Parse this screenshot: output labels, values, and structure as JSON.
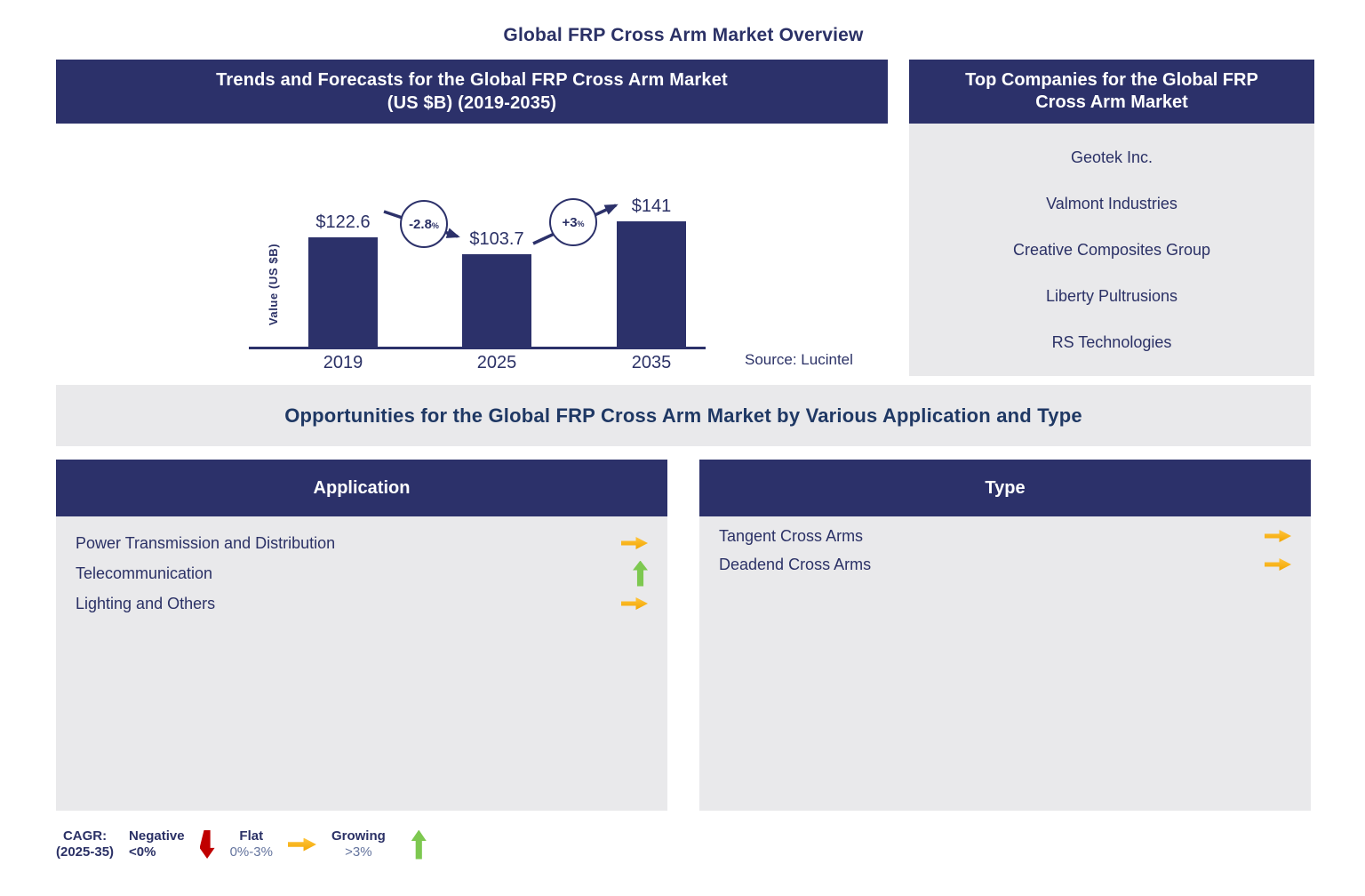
{
  "page": {
    "title": "Global FRP Cross Arm Market Overview"
  },
  "trends_panel": {
    "title_line1": "Trends and Forecasts for the Global FRP Cross Arm Market",
    "title_line2": "(US $B) (2019-2035)",
    "source": "Source: Lucintel"
  },
  "chart_data": {
    "type": "bar",
    "title": "Trends and Forecasts for the Global FRP Cross Arm Market (US $B) (2019-2035)",
    "categories": [
      "2019",
      "2025",
      "2035"
    ],
    "values": [
      122.6,
      103.7,
      141
    ],
    "value_labels": [
      "$122.6",
      "$103.7",
      "$141"
    ],
    "xlabel": "",
    "ylabel": "Value (US $B)",
    "ylim": [
      0,
      150
    ],
    "grid": false,
    "bar_color": "#2C316A",
    "legend_position": "none",
    "annotations": [
      {
        "value": "-2.8",
        "suffix": "%",
        "from": "2019",
        "to": "2025",
        "direction": "down"
      },
      {
        "value": "+3",
        "suffix": "%",
        "from": "2025",
        "to": "2035",
        "direction": "up"
      }
    ],
    "source": "Source: Lucintel"
  },
  "companies_panel": {
    "title_line1": "Top Companies for the Global FRP",
    "title_line2": "Cross Arm Market",
    "companies": [
      "Geotek Inc.",
      "Valmont Industries",
      "Creative Composites Group",
      "Liberty Pultrusions",
      "RS Technologies"
    ]
  },
  "opportunities": {
    "title": "Opportunities for the Global FRP Cross Arm Market by Various Application and Type",
    "application": {
      "title": "Application",
      "items": [
        {
          "label": "Power Transmission and Distribution",
          "trend": "flat"
        },
        {
          "label": "Telecommunication",
          "trend": "growing"
        },
        {
          "label": "Lighting and Others",
          "trend": "flat"
        }
      ]
    },
    "type": {
      "title": "Type",
      "items": [
        {
          "label": "Tangent Cross Arms",
          "trend": "flat"
        },
        {
          "label": "Deadend Cross Arms",
          "trend": "flat"
        }
      ]
    }
  },
  "legend": {
    "title_line1": "CAGR:",
    "title_line2": "(2025-35)",
    "items": [
      {
        "label": "Negative",
        "range": "<0%",
        "arrow": "down",
        "color": "#C00000",
        "strong_range": true
      },
      {
        "label": "Flat",
        "range": "0%-3%",
        "arrow": "right",
        "color": "#F2A500",
        "strong_range": false
      },
      {
        "label": "Growing",
        "range": ">3%",
        "arrow": "up",
        "color": "#7DC850",
        "strong_range": false
      }
    ]
  },
  "colors": {
    "navy": "#2C316A",
    "text_navy": "#2B3166",
    "panel_gray": "#E9E9EB",
    "gold": "#F2A500",
    "green": "#7DC850",
    "red": "#C00000"
  }
}
